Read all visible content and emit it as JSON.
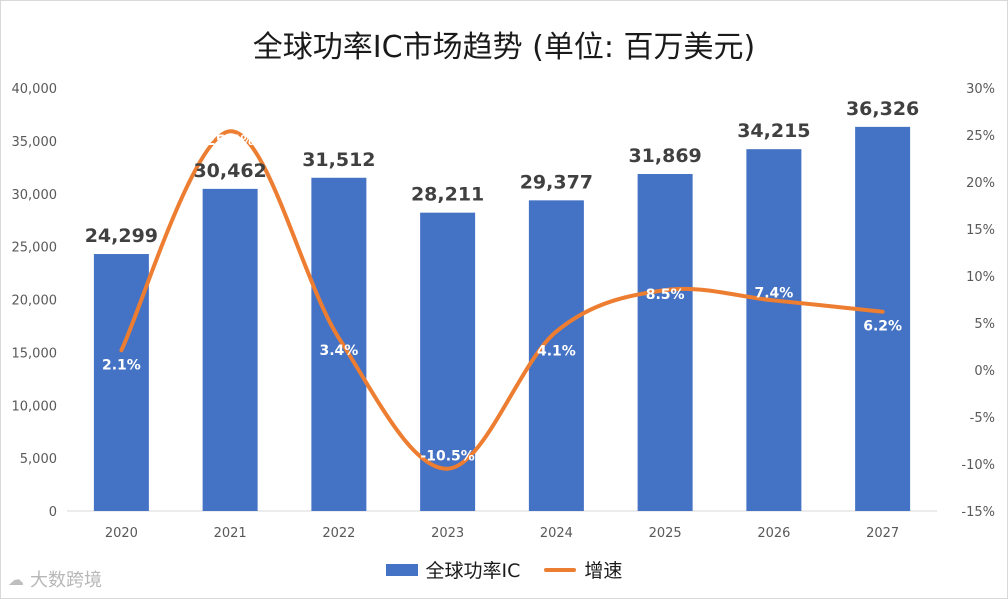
{
  "chart_data": {
    "type": "bar+line",
    "title": "全球功率IC市场趋势 (单位: 百万美元)",
    "categories": [
      "2020",
      "2021",
      "2022",
      "2023",
      "2024",
      "2025",
      "2026",
      "2027"
    ],
    "series": [
      {
        "name": "全球功率IC",
        "type": "bar",
        "axis": "left",
        "values": [
          24299,
          30462,
          31512,
          28211,
          29377,
          31869,
          34215,
          36326
        ],
        "labels": [
          "24,299",
          "30,462",
          "31,512",
          "28,211",
          "29,377",
          "31,869",
          "34,215",
          "36,326"
        ]
      },
      {
        "name": "增速",
        "type": "line",
        "axis": "right",
        "values": [
          2.1,
          25.4,
          3.4,
          -10.5,
          4.1,
          8.5,
          7.4,
          6.2
        ],
        "labels": [
          "2.1%",
          "25.4%",
          "3.4%",
          "-10.5%",
          "4.1%",
          "8.5%",
          "7.4%",
          "6.2%"
        ]
      }
    ],
    "y_left": {
      "range": [
        0,
        40000
      ],
      "ticks": [
        0,
        5000,
        10000,
        15000,
        20000,
        25000,
        30000,
        35000,
        40000
      ],
      "tick_labels": [
        "0",
        "5,000",
        "10,000",
        "15,000",
        "20,000",
        "25,000",
        "30,000",
        "35,000",
        "40,000"
      ]
    },
    "y_right": {
      "range": [
        -15,
        30
      ],
      "ticks": [
        -15,
        -10,
        -5,
        0,
        5,
        10,
        15,
        20,
        25,
        30
      ],
      "tick_labels": [
        "-15%",
        "-10%",
        "-5%",
        "0%",
        "5%",
        "10%",
        "15%",
        "20%",
        "25%",
        "30%"
      ]
    },
    "grid": false,
    "legend": "bottom-center"
  },
  "colors": {
    "bar": "#4472c4",
    "line": "#ed7d31",
    "axis": "#d9d9d9"
  },
  "watermark": {
    "text": "大数跨境",
    "logo_icon": "cloud-logo-icon"
  }
}
